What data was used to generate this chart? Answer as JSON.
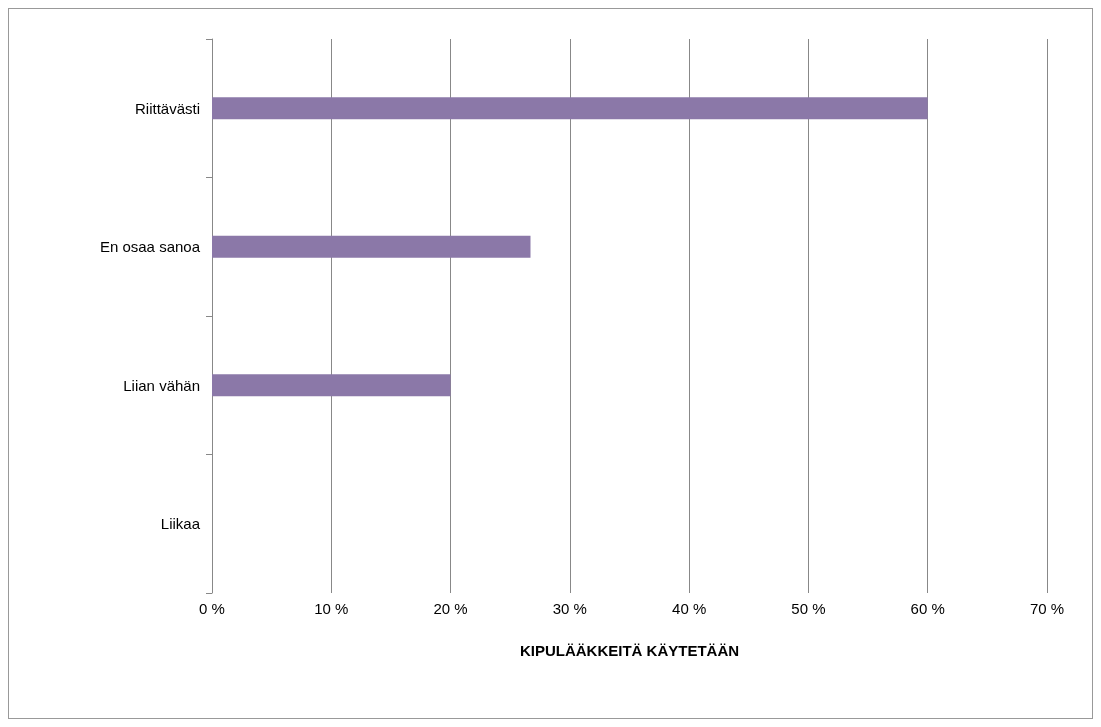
{
  "chart_data": {
    "type": "bar",
    "orientation": "horizontal",
    "xlabel": "KIPULÄÄKKEITÄ KÄYTETÄÄN",
    "categories": [
      "Riittävästi",
      "En osaa sanoa",
      "Liian vähän",
      "Liikaa"
    ],
    "values": [
      60,
      26.7,
      20,
      0
    ],
    "color": "#8b78a8",
    "xlim": [
      0,
      70
    ],
    "xticks": [
      {
        "value": 0,
        "label": "0 %"
      },
      {
        "value": 10,
        "label": "10 %"
      },
      {
        "value": 20,
        "label": "20 %"
      },
      {
        "value": 30,
        "label": "30 %"
      },
      {
        "value": 40,
        "label": "40 %"
      },
      {
        "value": 50,
        "label": "50 %"
      },
      {
        "value": 60,
        "label": "60 %"
      },
      {
        "value": 70,
        "label": "70 %"
      }
    ],
    "grid": "x"
  }
}
